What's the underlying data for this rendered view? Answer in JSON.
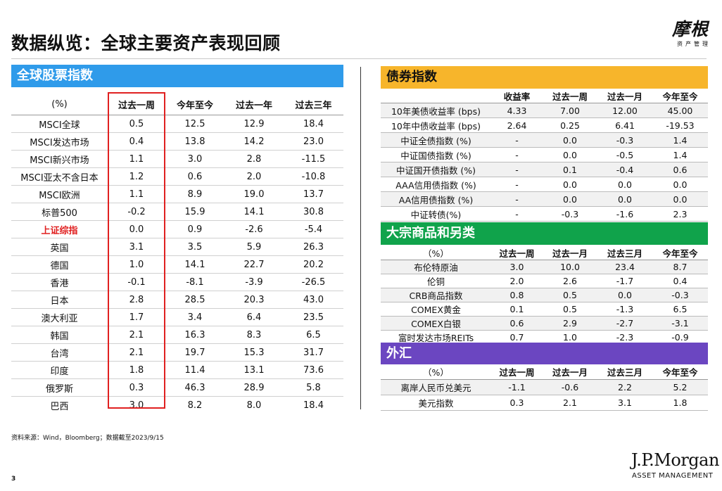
{
  "page": {
    "title": "数据纵览：全球主要资产表现回顾",
    "logo_cn": "摩根",
    "logo_sub": "资产管理",
    "source": "资料来源：Wind，Bloomberg；数据截至2023/9/15",
    "page_number": "3",
    "brand": "J.P.Morgan",
    "brand_sub": "ASSET MANAGEMENT"
  },
  "colors": {
    "equity_header": "#2f9bea",
    "bond_header": "#f7b52b",
    "commodity_header": "#10a34b",
    "fx_header": "#6b46c1",
    "highlight_box": "#e02020",
    "shanghai_label": "#e02020"
  },
  "equity": {
    "header": "全球股票指数",
    "columns": [
      "(%)",
      "过去一周",
      "今年至今",
      "过去一年",
      "过去三年"
    ],
    "rows": [
      {
        "name": "MSCI全球",
        "values": [
          "0.5",
          "12.5",
          "12.9",
          "18.4"
        ]
      },
      {
        "name": "MSCI发达市场",
        "values": [
          "0.4",
          "13.8",
          "14.2",
          "23.0"
        ]
      },
      {
        "name": "MSCI新兴市场",
        "values": [
          "1.1",
          "3.0",
          "2.8",
          "-11.5"
        ]
      },
      {
        "name": "MSCI亚太不含日本",
        "values": [
          "1.2",
          "0.6",
          "2.0",
          "-10.8"
        ]
      },
      {
        "name": "MSCI欧洲",
        "values": [
          "1.1",
          "8.9",
          "19.0",
          "13.7"
        ]
      },
      {
        "name": "标普500",
        "values": [
          "-0.2",
          "15.9",
          "14.1",
          "30.8"
        ]
      },
      {
        "name": "上证综指",
        "values": [
          "0.0",
          "0.9",
          "-2.6",
          "-5.4"
        ],
        "highlight": true
      },
      {
        "name": "英国",
        "values": [
          "3.1",
          "3.5",
          "5.9",
          "26.3"
        ]
      },
      {
        "name": "德国",
        "values": [
          "1.0",
          "14.1",
          "22.7",
          "20.2"
        ]
      },
      {
        "name": "香港",
        "values": [
          "-0.1",
          "-8.1",
          "-3.9",
          "-26.5"
        ]
      },
      {
        "name": "日本",
        "values": [
          "2.8",
          "28.5",
          "20.3",
          "43.0"
        ]
      },
      {
        "name": "澳大利亚",
        "values": [
          "1.7",
          "3.4",
          "6.4",
          "23.5"
        ]
      },
      {
        "name": "韩国",
        "values": [
          "2.1",
          "16.3",
          "8.3",
          "6.5"
        ]
      },
      {
        "name": "台湾",
        "values": [
          "2.1",
          "19.7",
          "15.3",
          "31.7"
        ]
      },
      {
        "name": "印度",
        "values": [
          "1.8",
          "11.4",
          "13.1",
          "73.6"
        ]
      },
      {
        "name": "俄罗斯",
        "values": [
          "0.3",
          "46.3",
          "28.9",
          "5.8"
        ]
      },
      {
        "name": "巴西",
        "values": [
          "3.0",
          "8.2",
          "8.0",
          "18.4"
        ]
      }
    ]
  },
  "bonds": {
    "header": "债券指数",
    "columns": [
      "",
      "收益率",
      "过去一周",
      "过去一月",
      "今年至今"
    ],
    "rows": [
      {
        "name": "10年美债收益率 (bps)",
        "values": [
          "4.33",
          "7.00",
          "12.00",
          "45.00"
        ]
      },
      {
        "name": "10年中债收益率 (bps)",
        "values": [
          "2.64",
          "0.25",
          "6.41",
          "-19.53"
        ]
      },
      {
        "name": "中证全债指数 (%)",
        "values": [
          "-",
          "0.0",
          "-0.3",
          "1.4"
        ]
      },
      {
        "name": "中证国债指数 (%)",
        "values": [
          "-",
          "0.0",
          "-0.5",
          "1.4"
        ]
      },
      {
        "name": "中证国开债指数 (%)",
        "values": [
          "-",
          "0.1",
          "-0.4",
          "0.6"
        ]
      },
      {
        "name": "AAA信用债指数 (%)",
        "values": [
          "-",
          "0.0",
          "0.0",
          "0.0"
        ]
      },
      {
        "name": "AA信用债指数 (%)",
        "values": [
          "-",
          "0.0",
          "0.0",
          "0.0"
        ]
      },
      {
        "name": "中证转债(%)",
        "values": [
          "-",
          "-0.3",
          "-1.6",
          "2.3"
        ]
      }
    ]
  },
  "commodities": {
    "header": "大宗商品和另类",
    "columns": [
      "（%）",
      "过去一周",
      "过去一月",
      "过去三月",
      "今年至今"
    ],
    "rows": [
      {
        "name": "布伦特原油",
        "values": [
          "3.0",
          "10.0",
          "23.4",
          "8.7"
        ]
      },
      {
        "name": "伦铜",
        "values": [
          "2.0",
          "2.6",
          "-1.7",
          "0.4"
        ]
      },
      {
        "name": "CRB商品指数",
        "values": [
          "0.8",
          "0.5",
          "0.0",
          "-0.3"
        ]
      },
      {
        "name": "COMEX黄金",
        "values": [
          "0.1",
          "0.5",
          "-1.3",
          "6.5"
        ]
      },
      {
        "name": "COMEX白银",
        "values": [
          "0.6",
          "2.9",
          "-2.7",
          "-3.1"
        ]
      },
      {
        "name": "富时发达市场REITs",
        "values": [
          "0.7",
          "1.0",
          "-2.3",
          "-0.9"
        ]
      }
    ]
  },
  "fx": {
    "header": "外汇",
    "columns": [
      "（%）",
      "过去一周",
      "过去一月",
      "过去三月",
      "今年至今"
    ],
    "rows": [
      {
        "name": "离岸人民币兑美元",
        "values": [
          "-1.1",
          "-0.6",
          "2.2",
          "5.2"
        ]
      },
      {
        "name": "美元指数",
        "values": [
          "0.3",
          "2.1",
          "3.1",
          "1.8"
        ]
      }
    ]
  }
}
